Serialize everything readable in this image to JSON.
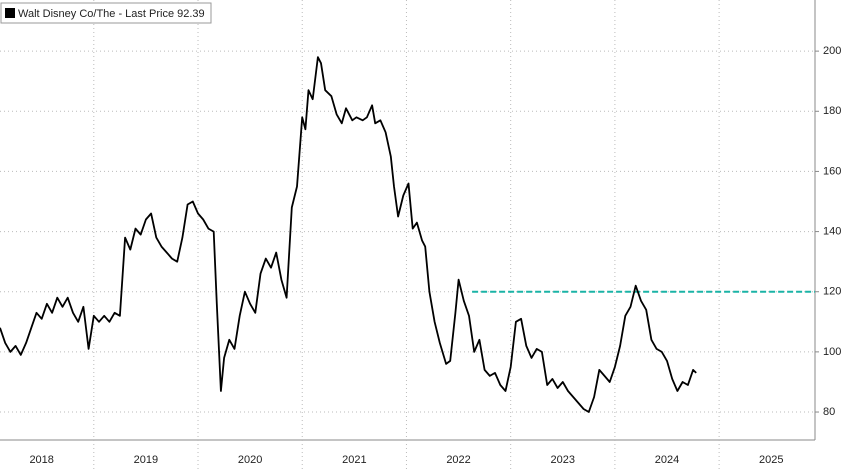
{
  "chart_data": {
    "type": "line",
    "x": [
      2018.1,
      2018.15,
      2018.2,
      2018.25,
      2018.3,
      2018.35,
      2018.4,
      2018.45,
      2018.5,
      2018.55,
      2018.6,
      2018.65,
      2018.7,
      2018.75,
      2018.8,
      2018.85,
      2018.9,
      2018.95,
      2019.0,
      2019.05,
      2019.1,
      2019.15,
      2019.2,
      2019.25,
      2019.3,
      2019.35,
      2019.4,
      2019.45,
      2019.5,
      2019.55,
      2019.6,
      2019.65,
      2019.7,
      2019.75,
      2019.8,
      2019.85,
      2019.9,
      2019.95,
      2020.0,
      2020.05,
      2020.1,
      2020.15,
      2020.18,
      2020.22,
      2020.25,
      2020.3,
      2020.35,
      2020.4,
      2020.45,
      2020.5,
      2020.55,
      2020.6,
      2020.65,
      2020.7,
      2020.75,
      2020.8,
      2020.85,
      2020.9,
      2020.95,
      2021.0,
      2021.03,
      2021.06,
      2021.1,
      2021.15,
      2021.18,
      2021.22,
      2021.28,
      2021.33,
      2021.38,
      2021.42,
      2021.48,
      2021.52,
      2021.58,
      2021.62,
      2021.67,
      2021.7,
      2021.75,
      2021.8,
      2021.85,
      2021.88,
      2021.92,
      2021.97,
      2022.02,
      2022.06,
      2022.1,
      2022.15,
      2022.18,
      2022.22,
      2022.27,
      2022.32,
      2022.38,
      2022.42,
      2022.47,
      2022.5,
      2022.55,
      2022.6,
      2022.65,
      2022.7,
      2022.75,
      2022.8,
      2022.85,
      2022.9,
      2022.95,
      2023.0,
      2023.05,
      2023.1,
      2023.15,
      2023.2,
      2023.25,
      2023.3,
      2023.35,
      2023.4,
      2023.45,
      2023.5,
      2023.55,
      2023.6,
      2023.65,
      2023.7,
      2023.75,
      2023.8,
      2023.85,
      2023.9,
      2023.95,
      2024.0,
      2024.05,
      2024.1,
      2024.15,
      2024.2,
      2024.25,
      2024.3,
      2024.35,
      2024.4,
      2024.45,
      2024.5,
      2024.55,
      2024.6,
      2024.65,
      2024.7,
      2024.75,
      2024.78
    ],
    "series": [
      {
        "name": "Walt Disney Co/The - Last Price 92.39",
        "color": "#000000",
        "values": [
          108,
          103,
          100,
          102,
          99,
          103,
          108,
          113,
          111,
          116,
          113,
          118,
          115,
          118,
          113,
          110,
          115,
          101,
          112,
          110,
          112,
          110,
          113,
          112,
          138,
          134,
          141,
          139,
          144,
          146,
          138,
          135,
          133,
          131,
          130,
          138,
          149,
          150,
          146,
          144,
          141,
          140,
          116,
          87,
          98,
          104,
          101,
          112,
          120,
          116,
          113,
          126,
          131,
          128,
          133,
          124,
          118,
          148,
          155,
          178,
          174,
          187,
          184,
          198,
          196,
          187,
          185,
          179,
          176,
          181,
          177,
          178,
          177,
          178,
          182,
          176,
          177,
          173,
          165,
          155,
          145,
          152,
          156,
          141,
          143,
          137,
          135,
          120,
          110,
          103,
          96,
          97,
          113,
          124,
          117,
          112,
          100,
          104,
          94,
          92,
          93,
          89,
          87,
          95,
          110,
          111,
          102,
          98,
          101,
          100,
          89,
          91,
          88,
          90,
          87,
          85,
          83,
          81,
          80,
          85,
          94,
          92,
          90,
          95,
          102,
          112,
          115,
          122,
          117,
          114,
          104,
          101,
          100,
          97,
          91,
          87,
          90,
          89,
          94,
          93
        ]
      }
    ],
    "reference_line": {
      "value": 120,
      "x_start": 2022.63,
      "color": "#1ab3a6"
    },
    "xlim": [
      2018.1,
      2025.92
    ],
    "xticks": [
      2018,
      2019,
      2020,
      2021,
      2022,
      2023,
      2024,
      2025
    ],
    "ylim": [
      70.7,
      217
    ],
    "yticks": [
      80,
      100,
      120,
      140,
      160,
      180,
      200
    ],
    "grid": true
  }
}
